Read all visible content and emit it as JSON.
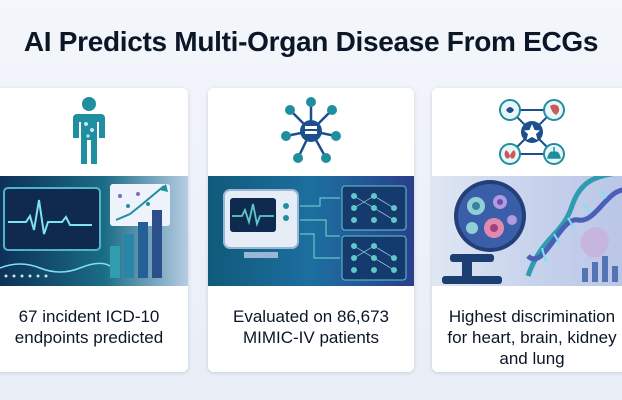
{
  "title": "AI Predicts Multi-Organ Disease From ECGs",
  "cards": [
    {
      "icon": "human-body-icon",
      "illustration": "ecg-monitor-growth-chart",
      "caption_line1": "67 incident ICD-10",
      "caption_line2": "endpoints predicted"
    },
    {
      "icon": "network-nodes-icon",
      "illustration": "monitor-neural-network",
      "caption_line1": "Evaluated on 86,673",
      "caption_line2": "MIMIC-IV patients"
    },
    {
      "icon": "organ-network-icon",
      "illustration": "microscope-cells-dna",
      "caption_line1": "Highest discrimination",
      "caption_line2": "for heart, brain, kidney",
      "caption_line3": "and lung"
    }
  ],
  "colors": {
    "navy": "#0b1626",
    "teal": "#1f8ea0",
    "blue": "#1d4f8f",
    "light_teal": "#62c7c7",
    "purple": "#7d6bc8"
  }
}
